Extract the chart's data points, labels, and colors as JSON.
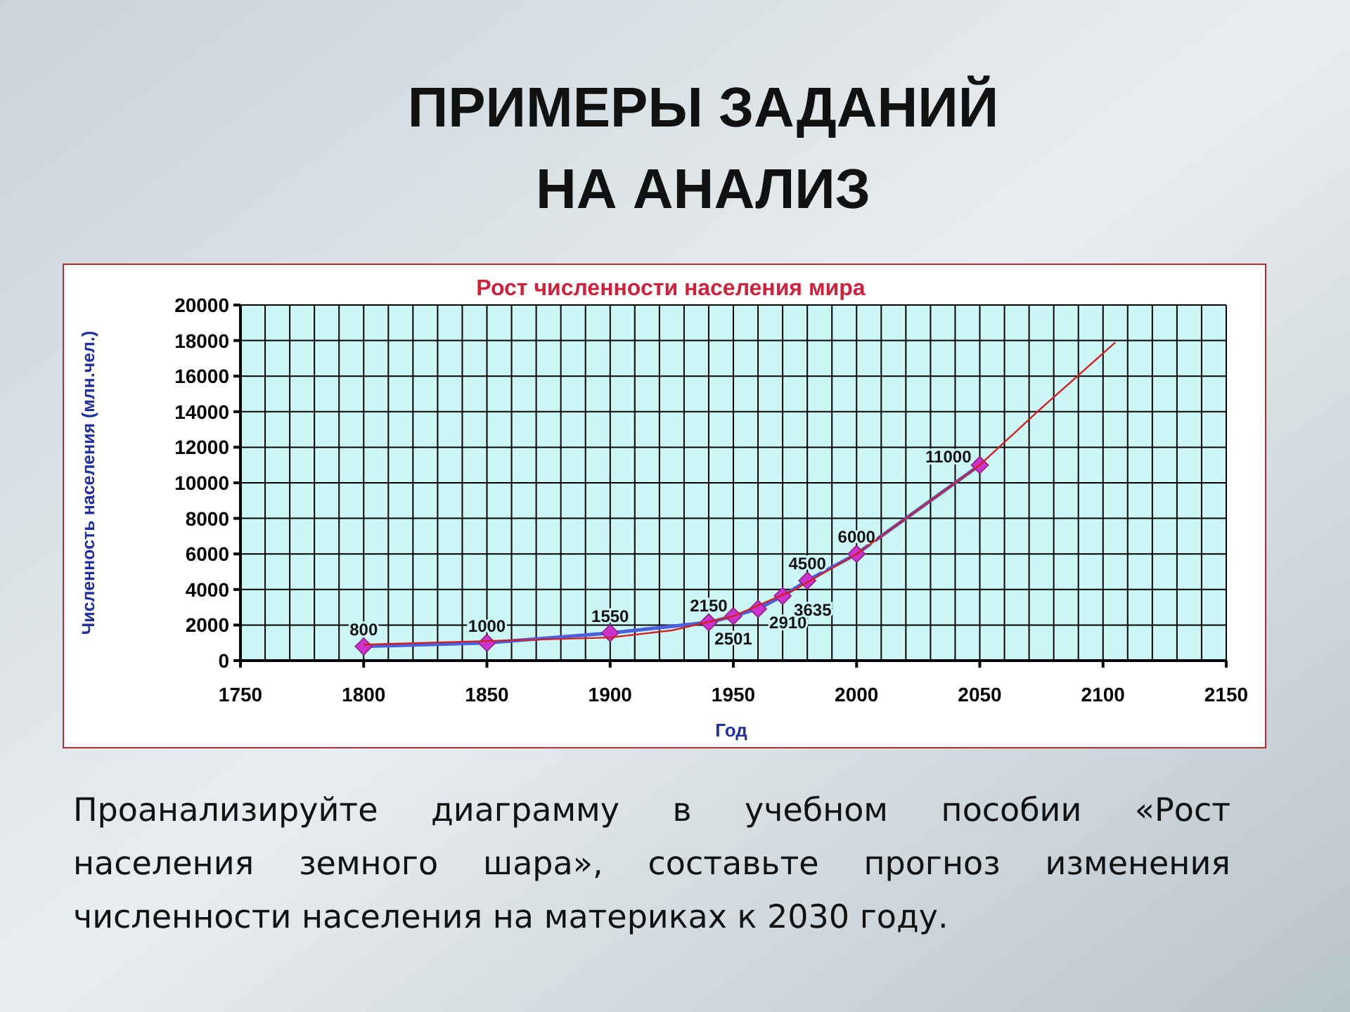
{
  "chart_data": {
    "type": "line",
    "title": "ПРИМЕРЫ ЗАДАНИЙ\nНА АНАЛИЗ",
    "subtitle": "Рост численности населения мира",
    "xlabel": "Год",
    "ylabel": "Численность населения (млн.чел.)",
    "series": [
      {
        "color": "#d02020",
        "marker": "none",
        "x": [
          1800,
          1850,
          1900,
          1925,
          1950,
          1975,
          2000,
          2025,
          2050,
          2075,
          2105
        ],
        "values": [
          900,
          1100,
          1300,
          1700,
          2500,
          4000,
          6000,
          8500,
          11000,
          14200,
          17900
        ]
      },
      {
        "color": "#4a5ee0",
        "marker": "diamond",
        "data_labels": true,
        "x": [
          1800,
          1850,
          1900,
          1940,
          1950,
          1960,
          1970,
          1980,
          2000,
          2050
        ],
        "values": [
          800,
          1000,
          1550,
          2150,
          2501,
          2910,
          3635,
          4500,
          6000,
          11000
        ]
      }
    ],
    "xlim": [
      1750,
      2150
    ],
    "xticks": [
      1750,
      1800,
      1850,
      1900,
      1950,
      2000,
      2050,
      2100,
      2150
    ],
    "ylim": [
      0,
      20000
    ],
    "yticks": [
      0,
      2000,
      4000,
      6000,
      8000,
      10000,
      12000,
      14000,
      16000,
      18000,
      20000
    ],
    "grid": true,
    "annotations": [
      "Проанализируйте диаграмму в учебном пособии «Рост\nнаселения земного шара», составьте прогноз изменения\nчисленности населения на материках к 2030 году."
    ]
  }
}
